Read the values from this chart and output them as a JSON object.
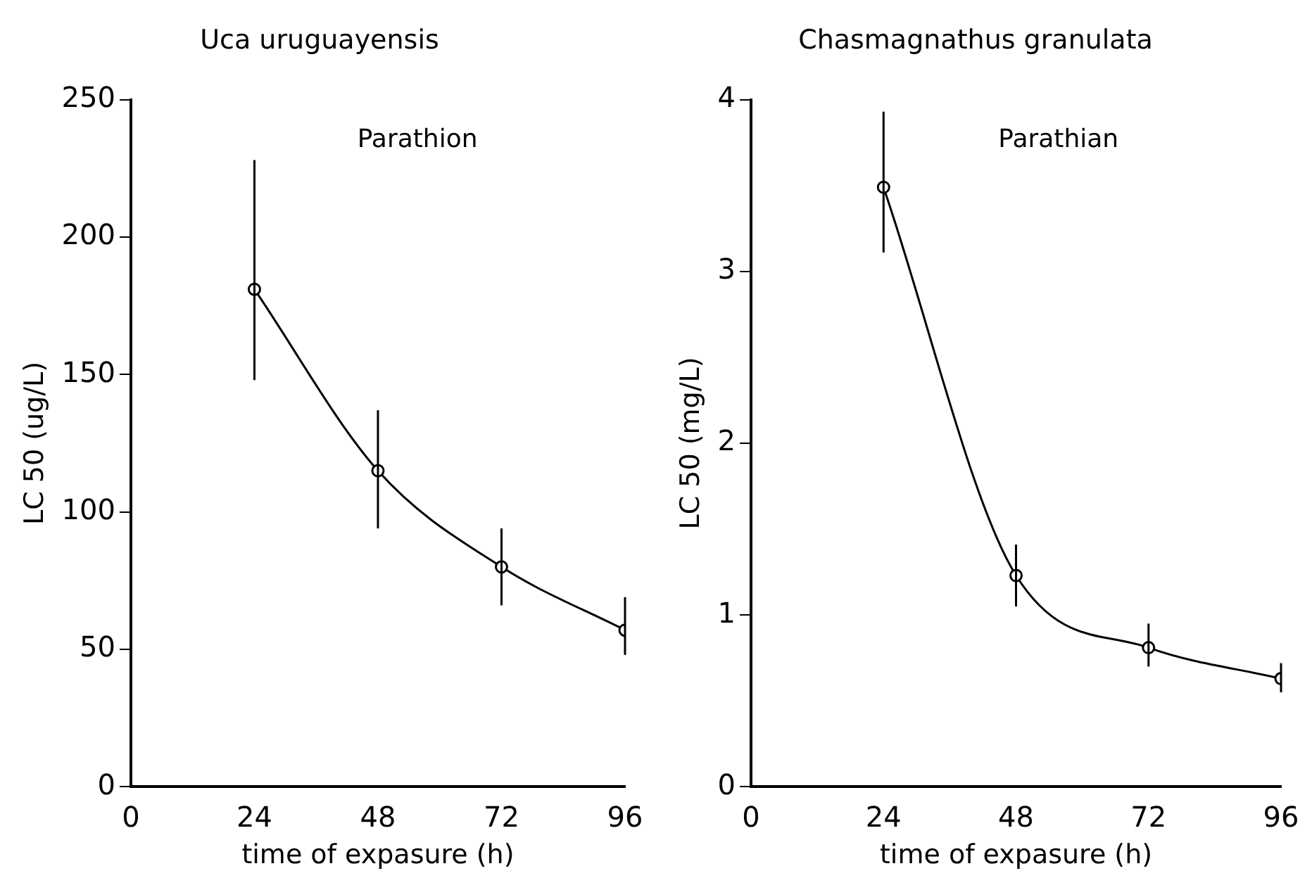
{
  "chart_data": [
    {
      "type": "line",
      "title": "Uca uruguayensis",
      "xlabel": "time of expasure (h)",
      "ylabel": "LC 50 (ug/L)",
      "annotations": [
        "Parathion"
      ],
      "x": [
        24,
        48,
        72,
        96
      ],
      "xlim": [
        0,
        96
      ],
      "xticks": [
        0,
        24,
        48,
        72,
        96
      ],
      "ylim": [
        0,
        250
      ],
      "yticks": [
        0,
        50,
        100,
        150,
        200,
        250
      ],
      "grid": false,
      "legend": false,
      "marker": "circle",
      "line_style": "solid",
      "series": [
        {
          "color": "#000000",
          "values": [
            181,
            115,
            80,
            57
          ],
          "errors": [
            [
              148,
              228
            ],
            [
              94,
              137
            ],
            [
              66,
              94
            ],
            [
              48,
              69
            ]
          ]
        }
      ]
    },
    {
      "type": "line",
      "title": "Chasmagnathus granulata",
      "xlabel": "time of expasure (h)",
      "ylabel": "LC 50 (mg/L)",
      "annotations": [
        "Parathian"
      ],
      "x": [
        24,
        48,
        72,
        96
      ],
      "xlim": [
        0,
        96
      ],
      "xticks": [
        0,
        24,
        48,
        72,
        96
      ],
      "ylim": [
        0,
        4
      ],
      "yticks": [
        0,
        1,
        2,
        3,
        4
      ],
      "grid": false,
      "legend": false,
      "marker": "circle",
      "line_style": "solid",
      "series": [
        {
          "color": "#000000",
          "values": [
            3.49,
            1.23,
            0.81,
            0.63
          ],
          "errors": [
            [
              3.11,
              3.93
            ],
            [
              1.05,
              1.41
            ],
            [
              0.7,
              0.95
            ],
            [
              0.55,
              0.72
            ]
          ]
        }
      ]
    }
  ]
}
